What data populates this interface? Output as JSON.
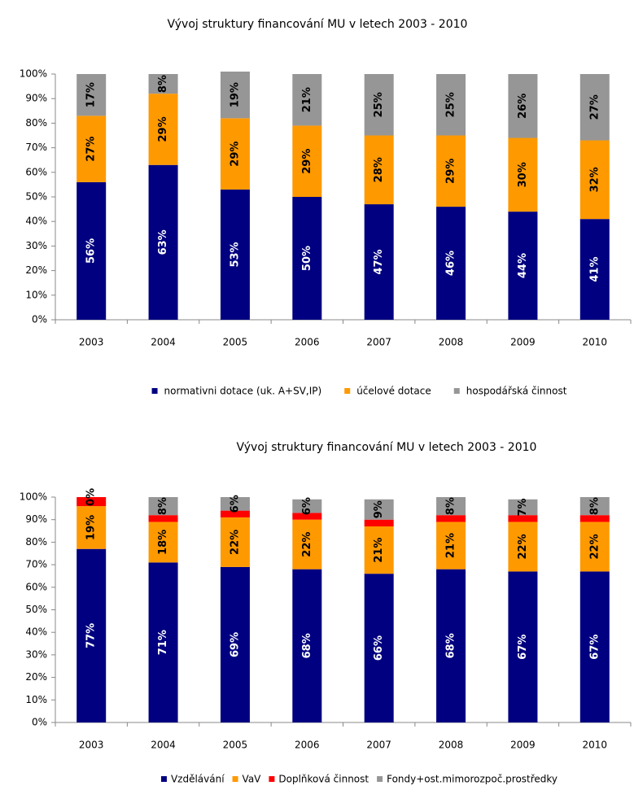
{
  "chart_data": [
    {
      "type": "stacked_bar",
      "title": "Vývoj  struktury financování MU v letech 2003 - 2010",
      "categories": [
        "2003",
        "2004",
        "2005",
        "2006",
        "2007",
        "2008",
        "2009",
        "2010"
      ],
      "ylim": [
        0,
        100
      ],
      "yticks": [
        {
          "value": 0,
          "label": "0%"
        },
        {
          "value": 10,
          "label": "10%"
        },
        {
          "value": 20,
          "label": "20%"
        },
        {
          "value": 30,
          "label": "30%"
        },
        {
          "value": 40,
          "label": "40%"
        },
        {
          "value": 50,
          "label": "50%"
        },
        {
          "value": 60,
          "label": "60%"
        },
        {
          "value": 70,
          "label": "70%"
        },
        {
          "value": 80,
          "label": "80%"
        },
        {
          "value": 90,
          "label": "90%"
        },
        {
          "value": 100,
          "label": "100%"
        }
      ],
      "legend": "bottom",
      "series": [
        {
          "name": "normativni dotace (uk. A+SV,IP)",
          "color": "#000080",
          "values": [
            56,
            63,
            53,
            50,
            47,
            46,
            44,
            41
          ],
          "value_labels": [
            "56%",
            "63%",
            "53%",
            "50%",
            "47%",
            "46%",
            "44%",
            "41%"
          ]
        },
        {
          "name": "účelové dotace",
          "color": "#ff9900",
          "values": [
            27,
            29,
            29,
            29,
            28,
            29,
            30,
            32
          ],
          "value_labels": [
            "27%",
            "29%",
            "29%",
            "29%",
            "28%",
            "29%",
            "30%",
            "32%"
          ]
        },
        {
          "name": "hospodářská činnost",
          "color": "#969696",
          "values": [
            17,
            8,
            19,
            21,
            25,
            25,
            26,
            27
          ],
          "value_labels": [
            "17%",
            "8%",
            "19%",
            "21%",
            "25%",
            "25%",
            "26%",
            "27%"
          ]
        }
      ]
    },
    {
      "type": "stacked_bar",
      "title": "Vývoj  struktury financování MU v letech 2003 - 2010",
      "categories": [
        "2003",
        "2004",
        "2005",
        "2006",
        "2007",
        "2008",
        "2009",
        "2010"
      ],
      "ylim": [
        0,
        100
      ],
      "yticks": [
        {
          "value": 0,
          "label": "0%"
        },
        {
          "value": 10,
          "label": "10%"
        },
        {
          "value": 20,
          "label": "20%"
        },
        {
          "value": 30,
          "label": "30%"
        },
        {
          "value": 40,
          "label": "40%"
        },
        {
          "value": 50,
          "label": "50%"
        },
        {
          "value": 60,
          "label": "60%"
        },
        {
          "value": 70,
          "label": "70%"
        },
        {
          "value": 80,
          "label": "80%"
        },
        {
          "value": 90,
          "label": "90%"
        },
        {
          "value": 100,
          "label": "100%"
        }
      ],
      "legend": "bottom",
      "series": [
        {
          "name": "Vzdělávání",
          "color": "#000080",
          "values": [
            77,
            71,
            69,
            68,
            66,
            68,
            67,
            67
          ],
          "value_labels": [
            "77%",
            "71%",
            "69%",
            "68%",
            "66%",
            "68%",
            "67%",
            "67%"
          ]
        },
        {
          "name": "VaV",
          "color": "#ff9900",
          "values": [
            19,
            18,
            22,
            22,
            21,
            21,
            22,
            22
          ],
          "value_labels": [
            "19%",
            "18%",
            "22%",
            "22%",
            "21%",
            "21%",
            "22%",
            "22%"
          ]
        },
        {
          "name": "Doplňková činnost",
          "color": "#ff0000",
          "values": [
            4,
            3,
            3,
            3,
            3,
            3,
            3,
            3
          ]
        },
        {
          "name": "Fondy+ost.mimorozpoč.prostředky",
          "color": "#969696",
          "values": [
            0,
            8,
            6,
            6,
            9,
            8,
            7,
            8
          ],
          "value_labels": [
            "0%",
            "8%",
            "6%",
            "6%",
            "9%",
            "8%",
            "7%",
            "8%"
          ]
        }
      ]
    }
  ]
}
